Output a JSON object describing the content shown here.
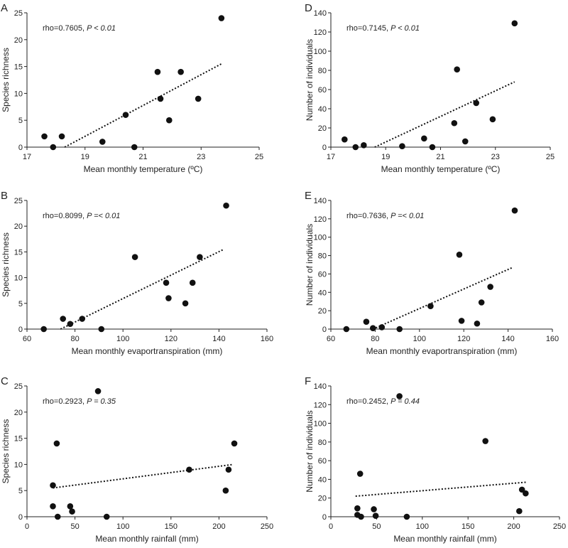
{
  "chart_data": [
    {
      "type": "scatter",
      "panel": "A",
      "annotation": {
        "rho": "rho=0.7605, ",
        "p": "P < 0.01"
      },
      "xlabel": "Mean monthly temperature (ºC)",
      "ylabel": "Species richness",
      "xlim": [
        17,
        25
      ],
      "ylim": [
        0,
        25
      ],
      "xticks": [
        "17",
        "19",
        "21",
        "23",
        "25"
      ],
      "yticks": [
        "0",
        "5",
        "10",
        "15",
        "20",
        "25"
      ],
      "points": [
        {
          "x": 17.6,
          "y": 2
        },
        {
          "x": 17.9,
          "y": 0
        },
        {
          "x": 18.2,
          "y": 2
        },
        {
          "x": 19.6,
          "y": 1
        },
        {
          "x": 20.4,
          "y": 6
        },
        {
          "x": 20.7,
          "y": 0
        },
        {
          "x": 21.5,
          "y": 14
        },
        {
          "x": 21.6,
          "y": 9
        },
        {
          "x": 21.9,
          "y": 5
        },
        {
          "x": 22.3,
          "y": 14
        },
        {
          "x": 22.9,
          "y": 9
        },
        {
          "x": 23.7,
          "y": 24
        }
      ],
      "trendline": [
        {
          "x": 18.3,
          "y": 0
        },
        {
          "x": 23.7,
          "y": 15.5
        }
      ]
    },
    {
      "type": "scatter",
      "panel": "B",
      "annotation": {
        "rho": "rho=0.8099, ",
        "p": "P =< 0.01"
      },
      "xlabel": "Mean monthly evaportranspiration (mm)",
      "ylabel": "Species richness",
      "xlim": [
        60,
        160
      ],
      "ylim": [
        0,
        25
      ],
      "xticks": [
        "60",
        "80",
        "100",
        "120",
        "140",
        "160"
      ],
      "yticks": [
        "0",
        "5",
        "10",
        "15",
        "20",
        "25"
      ],
      "points": [
        {
          "x": 67,
          "y": 0
        },
        {
          "x": 75,
          "y": 2
        },
        {
          "x": 78,
          "y": 1
        },
        {
          "x": 83,
          "y": 2
        },
        {
          "x": 91,
          "y": 0
        },
        {
          "x": 105,
          "y": 14
        },
        {
          "x": 118,
          "y": 9
        },
        {
          "x": 119,
          "y": 6
        },
        {
          "x": 126,
          "y": 5
        },
        {
          "x": 129,
          "y": 9
        },
        {
          "x": 132,
          "y": 14
        },
        {
          "x": 143,
          "y": 24
        }
      ],
      "trendline": [
        {
          "x": 74,
          "y": 0
        },
        {
          "x": 142,
          "y": 15.5
        }
      ]
    },
    {
      "type": "scatter",
      "panel": "C",
      "annotation": {
        "rho": "rho=0.2923, ",
        "p": "P = 0.35"
      },
      "xlabel": "Mean monthly rainfall (mm)",
      "ylabel": "Species richness",
      "xlim": [
        0,
        250
      ],
      "ylim": [
        0,
        25
      ],
      "xticks": [
        "0",
        "50",
        "100",
        "150",
        "200",
        "250"
      ],
      "yticks": [
        "0",
        "5",
        "10",
        "15",
        "20",
        "25"
      ],
      "points": [
        {
          "x": 27,
          "y": 6
        },
        {
          "x": 27,
          "y": 2
        },
        {
          "x": 31,
          "y": 14
        },
        {
          "x": 32,
          "y": 0
        },
        {
          "x": 45,
          "y": 2
        },
        {
          "x": 47,
          "y": 1
        },
        {
          "x": 74,
          "y": 24
        },
        {
          "x": 83,
          "y": 0
        },
        {
          "x": 169,
          "y": 9
        },
        {
          "x": 207,
          "y": 5
        },
        {
          "x": 210,
          "y": 9
        },
        {
          "x": 216,
          "y": 14
        }
      ],
      "trendline": [
        {
          "x": 27,
          "y": 5.5
        },
        {
          "x": 215,
          "y": 10
        }
      ]
    },
    {
      "type": "scatter",
      "panel": "D",
      "annotation": {
        "rho": "rho=0.7145, ",
        "p": "P < 0.01"
      },
      "xlabel": "Mean monthly temperature (ºC)",
      "ylabel": "Number of individuals",
      "xlim": [
        17,
        25
      ],
      "ylim": [
        0,
        140
      ],
      "xticks": [
        "17",
        "19",
        "21",
        "23",
        "25"
      ],
      "yticks": [
        "0",
        "20",
        "40",
        "60",
        "80",
        "100",
        "120",
        "140"
      ],
      "points": [
        {
          "x": 17.5,
          "y": 8
        },
        {
          "x": 17.9,
          "y": 0
        },
        {
          "x": 18.2,
          "y": 2
        },
        {
          "x": 19.6,
          "y": 1
        },
        {
          "x": 20.4,
          "y": 9
        },
        {
          "x": 20.7,
          "y": 0
        },
        {
          "x": 21.5,
          "y": 25
        },
        {
          "x": 21.6,
          "y": 81
        },
        {
          "x": 21.9,
          "y": 6
        },
        {
          "x": 22.3,
          "y": 46
        },
        {
          "x": 22.9,
          "y": 29
        },
        {
          "x": 23.7,
          "y": 129
        }
      ],
      "trendline": [
        {
          "x": 18.6,
          "y": 0
        },
        {
          "x": 23.7,
          "y": 68
        }
      ]
    },
    {
      "type": "scatter",
      "panel": "E",
      "annotation": {
        "rho": "rho=0.7636, ",
        "p": "P =< 0.01"
      },
      "xlabel": "Mean monthly evaportranspiration (mm)",
      "ylabel": "Number of individuals",
      "xlim": [
        60,
        160
      ],
      "ylim": [
        0,
        140
      ],
      "xticks": [
        "60",
        "80",
        "100",
        "120",
        "140",
        "160"
      ],
      "yticks": [
        "0",
        "20",
        "40",
        "60",
        "80",
        "100",
        "120",
        "140"
      ],
      "points": [
        {
          "x": 67,
          "y": 0
        },
        {
          "x": 76,
          "y": 8
        },
        {
          "x": 79,
          "y": 1
        },
        {
          "x": 83,
          "y": 2
        },
        {
          "x": 91,
          "y": 0
        },
        {
          "x": 105,
          "y": 25
        },
        {
          "x": 118,
          "y": 81
        },
        {
          "x": 119,
          "y": 9
        },
        {
          "x": 126,
          "y": 6
        },
        {
          "x": 128,
          "y": 29
        },
        {
          "x": 132,
          "y": 46
        },
        {
          "x": 143,
          "y": 129
        }
      ],
      "trendline": [
        {
          "x": 79,
          "y": 0
        },
        {
          "x": 142,
          "y": 67
        }
      ]
    },
    {
      "type": "scatter",
      "panel": "F",
      "annotation": {
        "rho": "rho=0.2452, ",
        "p": "P = 0.44"
      },
      "xlabel": "Mean monthly rainfall (mm)",
      "ylabel": "Number of individuals",
      "xlim": [
        0,
        250
      ],
      "ylim": [
        0,
        140
      ],
      "xticks": [
        "0",
        "50",
        "100",
        "150",
        "200",
        "250"
      ],
      "yticks": [
        "0",
        "20",
        "40",
        "60",
        "80",
        "100",
        "120",
        "140"
      ],
      "points": [
        {
          "x": 29,
          "y": 9
        },
        {
          "x": 29,
          "y": 2
        },
        {
          "x": 32,
          "y": 46
        },
        {
          "x": 33,
          "y": 0
        },
        {
          "x": 47,
          "y": 8
        },
        {
          "x": 49,
          "y": 1
        },
        {
          "x": 75,
          "y": 129
        },
        {
          "x": 83,
          "y": 0
        },
        {
          "x": 169,
          "y": 81
        },
        {
          "x": 206,
          "y": 6
        },
        {
          "x": 209,
          "y": 29
        },
        {
          "x": 213,
          "y": 25
        }
      ],
      "trendline": [
        {
          "x": 27,
          "y": 22
        },
        {
          "x": 214,
          "y": 37
        }
      ]
    }
  ]
}
